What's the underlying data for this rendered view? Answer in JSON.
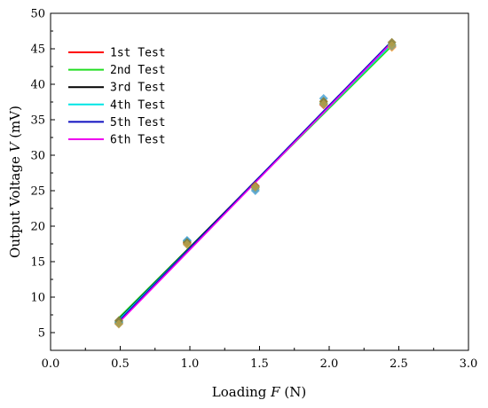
{
  "chart_data": {
    "type": "line",
    "xlabel": {
      "prefix": "Loading ",
      "var": "F",
      "suffix": " (N)"
    },
    "ylabel": {
      "prefix": "Output Voltage ",
      "var": "V",
      "suffix": " (mV)"
    },
    "xlim": [
      0,
      3
    ],
    "ylim": [
      2.5,
      50
    ],
    "xticks": [
      0,
      0.5,
      1,
      1.5,
      2,
      2.5,
      3
    ],
    "xtick_labels": [
      "0.0",
      "0.5",
      "1.0",
      "1.5",
      "2.0",
      "2.5",
      "3.0"
    ],
    "yticks": [
      5,
      10,
      15,
      20,
      25,
      30,
      35,
      40,
      45,
      50
    ],
    "ytick_labels": [
      "5",
      "10",
      "15",
      "20",
      "25",
      "30",
      "35",
      "40",
      "45",
      "50"
    ],
    "grid": false,
    "legend_position": "top-left",
    "x": [
      0.49,
      0.98,
      1.47,
      1.96,
      2.45
    ],
    "series": [
      {
        "name": "1st Test",
        "color": "#ff0000",
        "values": [
          6.3,
          17.6,
          25.7,
          37.1,
          45.3
        ],
        "fit": [
          6.6,
          46.0
        ]
      },
      {
        "name": "2nd Test",
        "color": "#22dd22",
        "values": [
          6.5,
          17.8,
          25.2,
          37.5,
          45.2
        ],
        "fit": [
          7.1,
          45.4
        ]
      },
      {
        "name": "3rd Test",
        "color": "#000000",
        "values": [
          6.4,
          17.9,
          25.4,
          37.3,
          45.6
        ],
        "fit": [
          6.9,
          45.8
        ]
      },
      {
        "name": "4th Test",
        "color": "#00e5e5",
        "values": [
          6.6,
          18.0,
          25.0,
          38.0,
          45.4
        ],
        "fit": [
          6.8,
          45.7
        ]
      },
      {
        "name": "5th Test",
        "color": "#1010c0",
        "values": [
          6.7,
          17.7,
          25.6,
          37.6,
          45.9
        ],
        "fit": [
          6.6,
          46.1
        ]
      },
      {
        "name": "6th Test",
        "color": "#ee00ee",
        "values": [
          6.2,
          17.4,
          25.5,
          37.2,
          45.5
        ],
        "fit": [
          6.4,
          45.9
        ]
      }
    ],
    "marker_colors": [
      "#e8503a",
      "#f2a33a",
      "#2ba3a3",
      "#4aa3d6",
      "#8a7a2a",
      "#b5a04a"
    ]
  }
}
